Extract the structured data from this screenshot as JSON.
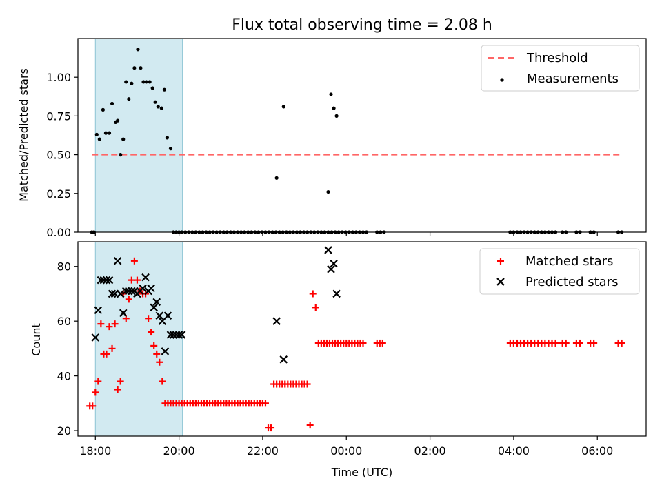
{
  "chart_data": [
    {
      "type": "scatter",
      "title": "Flux total observing time = 2.08 h",
      "xlabel": "",
      "ylabel": "Matched/Predicted stars",
      "xlim": [
        "17:35",
        "07:10"
      ],
      "ylim": [
        0,
        1.25
      ],
      "yticks": [
        "0.00",
        "0.25",
        "0.50",
        "0.75",
        "1.00"
      ],
      "highlight_span": [
        "18:00",
        "20:05"
      ],
      "highlight_color": "#add8e6",
      "threshold": {
        "name": "Threshold",
        "y": 0.5,
        "x_start": "17:55",
        "x_end": "06:35",
        "color": "#ff6666"
      },
      "legend": {
        "location": "top-right",
        "entries": [
          "Threshold",
          "Measurements"
        ]
      },
      "series": [
        {
          "name": "Measurements",
          "color": "#000000",
          "x": [
            "17:55",
            "17:58",
            "18:02",
            "18:06",
            "18:11",
            "18:15",
            "18:20",
            "18:24",
            "18:29",
            "18:32",
            "18:36",
            "18:40",
            "18:44",
            "18:48",
            "18:52",
            "18:56",
            "19:01",
            "19:05",
            "19:09",
            "19:13",
            "19:18",
            "19:22",
            "19:26",
            "19:30",
            "19:35",
            "19:39",
            "19:43",
            "19:48",
            "19:52",
            "19:56",
            "20:00",
            "20:04",
            "20:09",
            "20:14",
            "20:19",
            "20:24",
            "20:29",
            "20:34",
            "20:39",
            "20:44",
            "20:49",
            "20:54",
            "20:59",
            "21:04",
            "21:09",
            "21:14",
            "21:19",
            "21:24",
            "21:29",
            "21:34",
            "21:39",
            "21:44",
            "21:49",
            "21:54",
            "21:59",
            "22:04",
            "22:09",
            "22:14",
            "22:19",
            "22:24",
            "22:29",
            "22:34",
            "22:39",
            "22:44",
            "22:49",
            "22:54",
            "22:59",
            "23:04",
            "23:09",
            "23:14",
            "23:19",
            "23:24",
            "23:29",
            "23:34",
            "23:39",
            "23:44",
            "23:49",
            "23:54",
            "23:59",
            "00:04",
            "00:09",
            "00:14",
            "00:19",
            "00:24",
            "00:29",
            "00:44",
            "00:49",
            "00:54",
            "03:55",
            "04:00",
            "04:05",
            "04:10",
            "04:15",
            "04:20",
            "04:25",
            "04:30",
            "04:35",
            "04:40",
            "04:45",
            "04:50",
            "04:55",
            "05:00",
            "05:10",
            "05:15",
            "05:30",
            "05:35",
            "05:50",
            "05:55",
            "06:30",
            "06:35"
          ],
          "y": [
            0,
            0,
            0.63,
            0.6,
            0.79,
            0.64,
            0.64,
            0.83,
            0.71,
            0.72,
            0.5,
            0.6,
            0.97,
            0.86,
            0.96,
            1.06,
            1.18,
            1.06,
            0.97,
            0.97,
            0.97,
            0.93,
            0.84,
            0.81,
            0.8,
            0.92,
            0.61,
            0.54,
            0,
            0,
            0,
            0,
            0,
            0,
            0,
            0,
            0,
            0,
            0,
            0,
            0,
            0,
            0,
            0,
            0,
            0,
            0,
            0,
            0,
            0,
            0,
            0,
            0,
            0,
            0,
            0,
            0,
            0,
            0,
            0,
            0,
            0,
            0,
            0,
            0,
            0,
            0,
            0,
            0,
            0,
            0,
            0,
            0,
            0,
            0,
            0,
            0,
            0,
            0,
            0,
            0,
            0,
            0,
            0,
            0,
            0,
            0,
            0,
            0,
            0,
            0,
            0,
            0,
            0,
            0,
            0,
            0,
            0,
            0,
            0,
            0,
            0,
            0,
            0,
            0,
            0,
            0,
            0,
            0,
            0
          ],
          "x_extra": [
            "22:20",
            "22:30",
            "23:34",
            "23:38",
            "23:42",
            "23:46"
          ],
          "y_extra": [
            0.35,
            0.81,
            0.26,
            0.89,
            0.8,
            0.75
          ]
        }
      ]
    },
    {
      "type": "scatter",
      "title": "",
      "xlabel": "Time (UTC)",
      "ylabel": "Count",
      "xlim": [
        "17:35",
        "07:10"
      ],
      "ylim": [
        18,
        89
      ],
      "yticks": [
        "20",
        "40",
        "60",
        "80"
      ],
      "xticks": [
        "18:00",
        "20:00",
        "22:00",
        "00:00",
        "02:00",
        "04:00",
        "06:00"
      ],
      "highlight_span": [
        "18:00",
        "20:05"
      ],
      "highlight_color": "#add8e6",
      "legend": {
        "location": "top-right",
        "entries": [
          "Matched stars",
          "Predicted stars"
        ]
      },
      "series": [
        {
          "name": "Matched stars",
          "color": "#ff0000",
          "marker": "+",
          "x": [
            "17:52",
            "17:56",
            "18:00",
            "18:04",
            "18:08",
            "18:12",
            "18:16",
            "18:20",
            "18:24",
            "18:28",
            "18:32",
            "18:36",
            "18:40",
            "18:44",
            "18:48",
            "18:52",
            "18:56",
            "19:00",
            "19:04",
            "19:08",
            "19:12",
            "19:16",
            "19:20",
            "19:24",
            "19:28",
            "19:32",
            "19:36",
            "19:40",
            "19:44",
            "19:48",
            "19:52",
            "19:56",
            "20:00",
            "20:04",
            "20:08",
            "20:12",
            "20:16",
            "20:20",
            "20:24",
            "20:28",
            "20:32",
            "20:36",
            "20:40",
            "20:44",
            "20:48",
            "20:52",
            "20:56",
            "21:00",
            "21:04",
            "21:08",
            "21:12",
            "21:16",
            "21:20",
            "21:24",
            "21:28",
            "21:32",
            "21:36",
            "21:40",
            "21:44",
            "21:48",
            "21:52",
            "21:56",
            "22:00",
            "22:04",
            "22:08",
            "22:12",
            "22:16",
            "22:20",
            "22:24",
            "22:28",
            "22:32",
            "22:36",
            "22:40",
            "22:44",
            "22:48",
            "22:52",
            "22:56",
            "23:00",
            "23:04",
            "23:08",
            "23:12",
            "23:16",
            "23:20",
            "23:24",
            "23:28",
            "23:32",
            "23:36",
            "23:40",
            "23:44",
            "23:48",
            "23:52",
            "23:56",
            "00:00",
            "00:04",
            "00:08",
            "00:12",
            "00:16",
            "00:20",
            "00:24",
            "00:44",
            "00:48",
            "00:52",
            "03:55",
            "04:00",
            "04:05",
            "04:10",
            "04:15",
            "04:20",
            "04:25",
            "04:30",
            "04:35",
            "04:40",
            "04:45",
            "04:50",
            "04:55",
            "05:00",
            "05:10",
            "05:15",
            "05:30",
            "05:35",
            "05:50",
            "05:55",
            "06:30",
            "06:35"
          ],
          "y": [
            29,
            29,
            34,
            38,
            59,
            48,
            48,
            58,
            50,
            59,
            35,
            38,
            70,
            61,
            68,
            75,
            82,
            75,
            71,
            70,
            70,
            61,
            56,
            51,
            48,
            45,
            38,
            30,
            30,
            30,
            30,
            30,
            30,
            30,
            30,
            30,
            30,
            30,
            30,
            30,
            30,
            30,
            30,
            30,
            30,
            30,
            30,
            30,
            30,
            30,
            30,
            30,
            30,
            30,
            30,
            30,
            30,
            30,
            30,
            30,
            30,
            30,
            30,
            30,
            21,
            21,
            37,
            37,
            37,
            37,
            37,
            37,
            37,
            37,
            37,
            37,
            37,
            37,
            37,
            22,
            70,
            65,
            52,
            52,
            52,
            52,
            52,
            52,
            52,
            52,
            52,
            52,
            52,
            52,
            52,
            52,
            52,
            52,
            52,
            52,
            52,
            52,
            52,
            52,
            52,
            52,
            52,
            52,
            52,
            52,
            52,
            52,
            52,
            52,
            52,
            52,
            52,
            52,
            52,
            52,
            52,
            52,
            52,
            52
          ],
          "note_x_per_point": "see x_full"
        },
        {
          "name": "Predicted stars",
          "color": "#000000",
          "marker": "x",
          "x": [
            "18:00",
            "18:04",
            "18:08",
            "18:12",
            "18:16",
            "18:20",
            "18:24",
            "18:28",
            "18:32",
            "18:36",
            "18:40",
            "18:44",
            "18:48",
            "18:52",
            "18:56",
            "19:00",
            "19:04",
            "19:08",
            "19:12",
            "19:16",
            "19:20",
            "19:24",
            "19:28",
            "19:32",
            "19:36",
            "19:40",
            "19:44",
            "19:48",
            "19:52",
            "19:56",
            "20:00",
            "20:04",
            "22:20",
            "22:30",
            "23:34",
            "23:38",
            "23:42",
            "23:46"
          ],
          "y": [
            54,
            64,
            75,
            75,
            75,
            75,
            70,
            70,
            82,
            70,
            63,
            71,
            71,
            71,
            71,
            70,
            71,
            72,
            76,
            71,
            72,
            65,
            67,
            62,
            60,
            49,
            62,
            55,
            55,
            55,
            55,
            55,
            60,
            46,
            86,
            79,
            81,
            70
          ]
        }
      ]
    }
  ]
}
